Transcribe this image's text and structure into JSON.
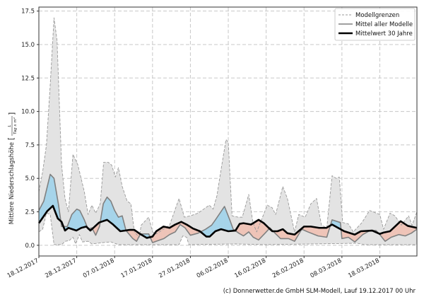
{
  "chart_data": {
    "type": "line",
    "ylabel": "Mittlere Niederschlagshöhe",
    "ylabel_unit_open": "[",
    "ylabel_unit_num": "L",
    "ylabel_unit_den": "Tag x m²",
    "ylabel_unit_close": "]",
    "xlabel": "",
    "x_unit": "days since 18.12.2017",
    "xlim": [
      0,
      99.8
    ],
    "ylim": [
      -0.8,
      17.8
    ],
    "grid": true,
    "legend_position": "top-right",
    "yticks": [
      0.0,
      2.5,
      5.0,
      7.5,
      10.0,
      12.5,
      15.0,
      17.5
    ],
    "ytick_labels": [
      "0.0",
      "2.5",
      "5.0",
      "7.5",
      "10.0",
      "12.5",
      "15.0",
      "17.5"
    ],
    "xticks": [
      0,
      10,
      20,
      30,
      40,
      50,
      60,
      70,
      80,
      90
    ],
    "xtick_labels": [
      "18.12.2017",
      "28.12.2017",
      "07.01.2018",
      "17.01.2018",
      "27.01.2018",
      "06.02.2018",
      "16.02.2018",
      "26.02.2018",
      "08.03.2018",
      "18.03.2018"
    ],
    "legend": [
      "Modellgrenzen",
      "Mittel aller Modelle",
      "Mittelwert 30 Jahre"
    ],
    "colors": {
      "band": "#e3e3e3",
      "bounds": "#999999",
      "mean": "#808080",
      "clim": "#000000",
      "above": "#a6d4ea",
      "below": "#efc4b8"
    },
    "series": [
      {
        "name": "Modellgrenzen max",
        "points": [
          [
            0,
            4.0
          ],
          [
            1,
            5.5
          ],
          [
            2,
            7.5
          ],
          [
            3,
            12
          ],
          [
            4,
            17
          ],
          [
            4.8,
            15.3
          ],
          [
            6,
            6.0
          ],
          [
            6.9,
            3.5
          ],
          [
            7.8,
            2.5
          ],
          [
            9,
            6.8
          ],
          [
            10.3,
            6.0
          ],
          [
            12,
            4.0
          ],
          [
            13,
            2.3
          ],
          [
            14,
            3.0
          ],
          [
            15,
            2.4
          ],
          [
            16.2,
            3.1
          ],
          [
            17.1,
            6.2
          ],
          [
            18.3,
            6.2
          ],
          [
            19.2,
            6.0
          ],
          [
            20.2,
            5.1
          ],
          [
            21,
            5.8
          ],
          [
            22,
            4.4
          ],
          [
            23.3,
            3.3
          ],
          [
            24.3,
            3.1
          ],
          [
            25.2,
            1.0
          ],
          [
            26.5,
            0.6
          ],
          [
            27,
            1.5
          ],
          [
            29,
            2.1
          ],
          [
            30,
            1.0
          ],
          [
            31,
            0.85
          ],
          [
            34.5,
            1.5
          ],
          [
            37,
            3.5
          ],
          [
            38.4,
            2.1
          ],
          [
            40,
            2.2
          ],
          [
            42,
            2.4
          ],
          [
            45,
            3.0
          ],
          [
            46,
            2.7
          ],
          [
            47,
            3.7
          ],
          [
            48,
            5.5
          ],
          [
            49.4,
            7.9
          ],
          [
            50,
            7.7
          ],
          [
            51,
            2.2
          ],
          [
            52.6,
            2.1
          ],
          [
            53.7,
            2.1
          ],
          [
            55.4,
            3.8
          ],
          [
            56.5,
            1.7
          ],
          [
            57.5,
            1.0
          ],
          [
            60.3,
            3.0
          ],
          [
            61.6,
            2.8
          ],
          [
            62.5,
            2.3
          ],
          [
            64.4,
            4.4
          ],
          [
            65.6,
            3.5
          ],
          [
            67.5,
            1.0
          ],
          [
            68.6,
            2.3
          ],
          [
            70.3,
            2.1
          ],
          [
            71.8,
            3.1
          ],
          [
            73.3,
            3.5
          ],
          [
            74.6,
            1.5
          ],
          [
            76,
            1.3
          ],
          [
            77.4,
            5.2
          ],
          [
            78.5,
            5.0
          ],
          [
            79.3,
            5.1
          ],
          [
            80.2,
            1.7
          ],
          [
            81.7,
            1.6
          ],
          [
            83,
            1.0
          ],
          [
            85.3,
            1.7
          ],
          [
            87.3,
            2.6
          ],
          [
            90,
            2.3
          ],
          [
            91,
            1.2
          ],
          [
            92.7,
            2.4
          ],
          [
            94,
            2.2
          ],
          [
            95.7,
            1.5
          ],
          [
            97.6,
            2.2
          ],
          [
            98.5,
            1.5
          ],
          [
            99.8,
            2.5
          ]
        ]
      },
      {
        "name": "Modellgrenzen min",
        "points": [
          [
            0,
            1.0
          ],
          [
            1,
            1.2
          ],
          [
            2,
            2.4
          ],
          [
            3,
            2.3
          ],
          [
            4,
            0.05
          ],
          [
            6,
            0.05
          ],
          [
            7,
            0.3
          ],
          [
            8,
            0.35
          ],
          [
            9,
            0.6
          ],
          [
            9.7,
            0.1
          ],
          [
            10.7,
            0.8
          ],
          [
            11.5,
            0.25
          ],
          [
            13,
            0.3
          ],
          [
            14,
            0.1
          ],
          [
            17,
            0.2
          ],
          [
            19,
            0.25
          ],
          [
            21,
            0.05
          ],
          [
            37,
            0.05
          ],
          [
            38,
            0.7
          ],
          [
            39,
            0.6
          ],
          [
            39.6,
            0.05
          ],
          [
            52,
            0.1
          ],
          [
            60,
            0.05
          ],
          [
            84,
            0.15
          ],
          [
            86,
            0.05
          ],
          [
            99.8,
            0.05
          ]
        ]
      },
      {
        "name": "Mittel aller Modelle",
        "points": [
          [
            0,
            2.6
          ],
          [
            1.3,
            3.3
          ],
          [
            3,
            5.3
          ],
          [
            4,
            5.0
          ],
          [
            5.2,
            3.0
          ],
          [
            6,
            1.4
          ],
          [
            7.5,
            1.4
          ],
          [
            8.7,
            2.3
          ],
          [
            10,
            2.7
          ],
          [
            10.8,
            2.6
          ],
          [
            12,
            1.9
          ],
          [
            13,
            1.2
          ],
          [
            14,
            1.3
          ],
          [
            15,
            0.75
          ],
          [
            16,
            1.4
          ],
          [
            17,
            3.1
          ],
          [
            18,
            3.6
          ],
          [
            19,
            3.3
          ],
          [
            20,
            2.6
          ],
          [
            21,
            2.1
          ],
          [
            22,
            2.2
          ],
          [
            23,
            1.1
          ],
          [
            24.8,
            0.5
          ],
          [
            25.8,
            0.3
          ],
          [
            26.7,
            0.8
          ],
          [
            27,
            0.85
          ],
          [
            29,
            0.85
          ],
          [
            30,
            0.2
          ],
          [
            31,
            0.3
          ],
          [
            33,
            0.5
          ],
          [
            34.5,
            0.8
          ],
          [
            36,
            1.0
          ],
          [
            37.3,
            1.55
          ],
          [
            38.6,
            1.3
          ],
          [
            40,
            0.75
          ],
          [
            42,
            0.9
          ],
          [
            44,
            1.2
          ],
          [
            45.6,
            1.5
          ],
          [
            46.6,
            1.9
          ],
          [
            49,
            2.9
          ],
          [
            50.4,
            1.9
          ],
          [
            51.3,
            1.2
          ],
          [
            52.8,
            0.9
          ],
          [
            54,
            0.7
          ],
          [
            55.4,
            1.0
          ],
          [
            56.6,
            0.6
          ],
          [
            58,
            0.4
          ],
          [
            59.7,
            0.9
          ],
          [
            61,
            1.3
          ],
          [
            62,
            1.0
          ],
          [
            63.8,
            0.5
          ],
          [
            65.9,
            0.5
          ],
          [
            67.5,
            0.3
          ],
          [
            69.4,
            1.2
          ],
          [
            71,
            1.0
          ],
          [
            73.7,
            0.7
          ],
          [
            76,
            0.6
          ],
          [
            77.4,
            1.9
          ],
          [
            79.6,
            1.7
          ],
          [
            80,
            0.5
          ],
          [
            81.7,
            0.6
          ],
          [
            83.4,
            0.25
          ],
          [
            85.5,
            0.8
          ],
          [
            87.4,
            1.1
          ],
          [
            89,
            1.1
          ],
          [
            90,
            0.8
          ],
          [
            91.4,
            0.3
          ],
          [
            93,
            0.6
          ],
          [
            95,
            0.8
          ],
          [
            96.7,
            0.7
          ],
          [
            98.3,
            0.9
          ],
          [
            99.8,
            1.2
          ]
        ]
      },
      {
        "name": "Mittelwert 30 Jahre",
        "points": [
          [
            0,
            1.65
          ],
          [
            2.2,
            2.55
          ],
          [
            3.7,
            2.95
          ],
          [
            5,
            2.0
          ],
          [
            6,
            1.75
          ],
          [
            6.9,
            1.1
          ],
          [
            7.8,
            1.3
          ],
          [
            9.9,
            1.1
          ],
          [
            11.2,
            1.3
          ],
          [
            12.5,
            1.4
          ],
          [
            13.6,
            1.1
          ],
          [
            15.9,
            1.7
          ],
          [
            18,
            1.9
          ],
          [
            19.6,
            1.55
          ],
          [
            21.5,
            1.05
          ],
          [
            24,
            1.15
          ],
          [
            25.2,
            1.15
          ],
          [
            26.7,
            0.85
          ],
          [
            28.5,
            0.55
          ],
          [
            30,
            0.65
          ],
          [
            31,
            1.05
          ],
          [
            32.9,
            1.4
          ],
          [
            34.5,
            1.3
          ],
          [
            36,
            1.55
          ],
          [
            37.6,
            1.75
          ],
          [
            39,
            1.55
          ],
          [
            40.7,
            1.25
          ],
          [
            42.5,
            1.05
          ],
          [
            44.2,
            0.65
          ],
          [
            45.1,
            0.65
          ],
          [
            46.6,
            1.05
          ],
          [
            48.1,
            1.2
          ],
          [
            50,
            1.05
          ],
          [
            51.9,
            1.1
          ],
          [
            53,
            1.6
          ],
          [
            54,
            1.65
          ],
          [
            56,
            1.55
          ],
          [
            58,
            1.9
          ],
          [
            59.4,
            1.65
          ],
          [
            61.6,
            1.05
          ],
          [
            63,
            1.05
          ],
          [
            64.4,
            1.2
          ],
          [
            65.6,
            0.9
          ],
          [
            67.5,
            0.8
          ],
          [
            70,
            1.4
          ],
          [
            71.8,
            1.4
          ],
          [
            74,
            1.3
          ],
          [
            75.9,
            1.3
          ],
          [
            77.4,
            1.55
          ],
          [
            80.6,
            1.05
          ],
          [
            83.4,
            0.8
          ],
          [
            85,
            1.05
          ],
          [
            88,
            1.1
          ],
          [
            90,
            0.85
          ],
          [
            91,
            0.95
          ],
          [
            92.7,
            1.05
          ],
          [
            95.5,
            1.8
          ],
          [
            97.4,
            1.45
          ],
          [
            99.8,
            1.3
          ]
        ]
      }
    ]
  },
  "credit": "(c) Donnerwetter.de GmbH SLM-Modell, Lauf 19.12.2017 00 Uhr"
}
